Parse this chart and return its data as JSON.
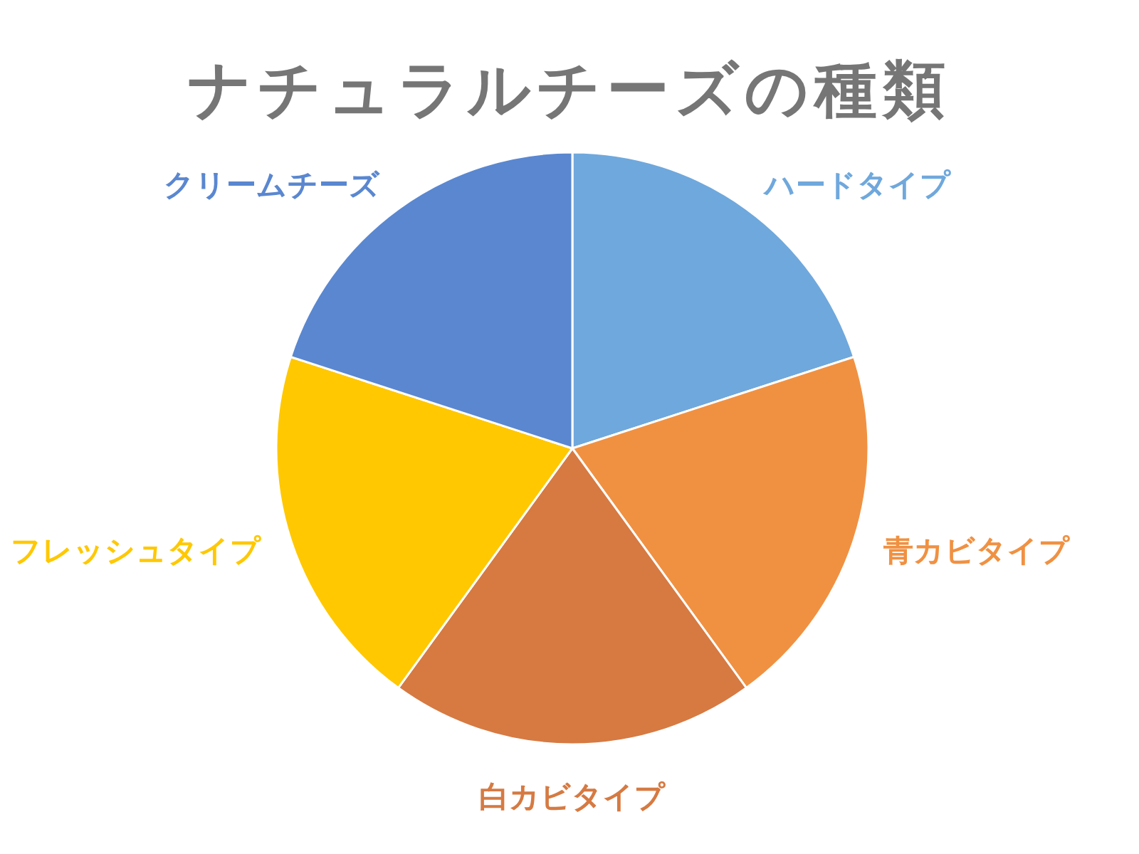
{
  "chart_data": {
    "type": "pie",
    "title": "ナチュラルチーズの種類",
    "categories": [
      "ハードタイプ",
      "青カビタイプ",
      "白カビタイプ",
      "フレッシュタイプ",
      "クリームチーズ"
    ],
    "values": [
      20,
      20,
      20,
      20,
      20
    ],
    "colors": [
      "#6fa8dc",
      "#f09142",
      "#d67a42",
      "#ffc800",
      "#5a87d0"
    ]
  }
}
